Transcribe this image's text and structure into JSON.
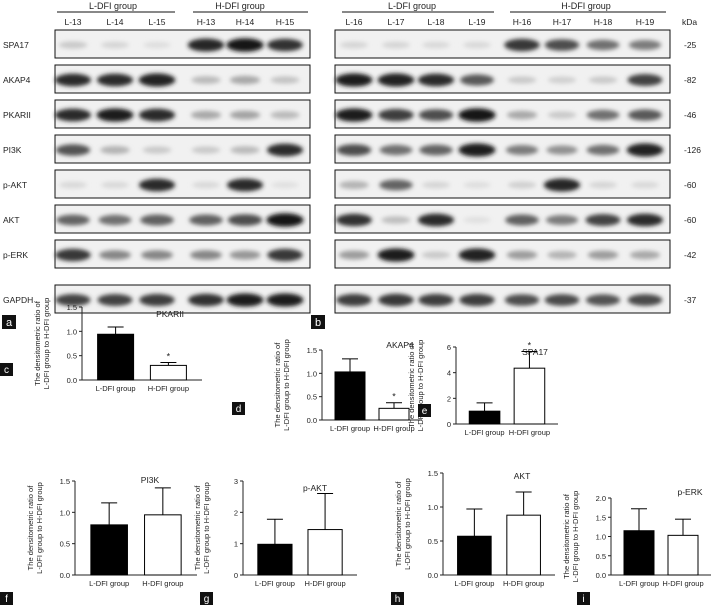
{
  "panel_a": {
    "group_left": "L-DFI group",
    "group_right": "H-DFI group",
    "lanes": [
      "L-13",
      "L-14",
      "L-15",
      "H-13",
      "H-14",
      "H-15"
    ],
    "rows": [
      "SPA17",
      "AKAP4",
      "PKARII",
      "PI3K",
      "p-AKT",
      "AKT",
      "p-ERK",
      "GAPDH"
    ],
    "letter": "a",
    "intensity": [
      [
        0.15,
        0.1,
        0.06,
        0.88,
        0.95,
        0.82
      ],
      [
        0.85,
        0.85,
        0.9,
        0.22,
        0.3,
        0.18
      ],
      [
        0.85,
        0.92,
        0.85,
        0.3,
        0.32,
        0.22
      ],
      [
        0.68,
        0.25,
        0.15,
        0.15,
        0.22,
        0.85
      ],
      [
        0.08,
        0.08,
        0.85,
        0.08,
        0.85,
        0.05
      ],
      [
        0.6,
        0.55,
        0.62,
        0.62,
        0.7,
        0.95
      ],
      [
        0.8,
        0.45,
        0.45,
        0.45,
        0.38,
        0.8
      ],
      [
        0.75,
        0.75,
        0.78,
        0.82,
        0.92,
        0.92
      ]
    ]
  },
  "panel_b": {
    "group_left": "L-DFI group",
    "group_right": "H-DFI group",
    "kda_label": "kDa",
    "lanes": [
      "L-16",
      "L-17",
      "L-18",
      "L-19",
      "H-16",
      "H-17",
      "H-18",
      "H-19"
    ],
    "markers": [
      "-25",
      "-82",
      "-46",
      "-126",
      "-60",
      "-60",
      "-42",
      "-37"
    ],
    "letter": "b",
    "intensity": [
      [
        0.1,
        0.1,
        0.08,
        0.08,
        0.8,
        0.7,
        0.55,
        0.5
      ],
      [
        0.92,
        0.9,
        0.85,
        0.65,
        0.15,
        0.12,
        0.15,
        0.75
      ],
      [
        0.92,
        0.78,
        0.7,
        0.95,
        0.3,
        0.15,
        0.55,
        0.65
      ],
      [
        0.7,
        0.55,
        0.6,
        0.92,
        0.5,
        0.4,
        0.55,
        0.9
      ],
      [
        0.25,
        0.6,
        0.1,
        0.06,
        0.12,
        0.88,
        0.1,
        0.08
      ],
      [
        0.82,
        0.2,
        0.85,
        0.05,
        0.62,
        0.5,
        0.75,
        0.85
      ],
      [
        0.35,
        0.92,
        0.15,
        0.9,
        0.35,
        0.25,
        0.35,
        0.3
      ],
      [
        0.78,
        0.8,
        0.78,
        0.78,
        0.7,
        0.72,
        0.68,
        0.72
      ]
    ]
  },
  "chart_data": [
    {
      "id": "c",
      "type": "bar",
      "title": "PKARII",
      "letter": "c",
      "categories": [
        "L-DFI group",
        "H-DFI group"
      ],
      "values": [
        0.94,
        0.3
      ],
      "errors": [
        0.15,
        0.06
      ],
      "ylim": [
        0,
        1.5
      ],
      "yticks": [
        "0.0",
        "0.5",
        "1.0",
        "1.5"
      ],
      "ylabel": [
        "The densitometric ratio of",
        "L-DFI group to H-DFI group"
      ],
      "significance": "*",
      "fills": [
        "#000000",
        "#ffffff"
      ]
    },
    {
      "id": "d",
      "type": "bar",
      "title": "AKAP4",
      "letter": "d",
      "categories": [
        "L-DFI group",
        "H-DFI group"
      ],
      "values": [
        1.03,
        0.25
      ],
      "errors": [
        0.28,
        0.12
      ],
      "ylim": [
        0,
        1.5
      ],
      "yticks": [
        "0.0",
        "0.5",
        "1.0",
        "1.5"
      ],
      "ylabel": [
        "The densitometric ratio of",
        "L-DFI group to H-DFI group"
      ],
      "significance": "*",
      "fills": [
        "#000000",
        "#ffffff"
      ]
    },
    {
      "id": "e",
      "type": "bar",
      "title": "SPA17",
      "letter": "e",
      "categories": [
        "L-DFI group",
        "H-DFI group"
      ],
      "values": [
        1.0,
        4.35
      ],
      "errors": [
        0.65,
        1.3
      ],
      "ylim": [
        0,
        6
      ],
      "yticks": [
        "0",
        "2",
        "4",
        "6"
      ],
      "ylabel": [
        "The densitometric ratio of",
        "L-DFI group to H-DFI group"
      ],
      "significance": "*",
      "fills": [
        "#000000",
        "#ffffff"
      ]
    },
    {
      "id": "f",
      "type": "bar",
      "title": "PI3K",
      "letter": "f",
      "categories": [
        "L-DFI group",
        "H-DFI group"
      ],
      "values": [
        0.8,
        0.96
      ],
      "errors": [
        0.35,
        0.43
      ],
      "ylim": [
        0,
        1.5
      ],
      "yticks": [
        "0.0",
        "0.5",
        "1.0",
        "1.5"
      ],
      "ylabel": [
        "The densitometric ratio of",
        "L-DFI group to H-DFI group"
      ],
      "significance": "",
      "fills": [
        "#000000",
        "#ffffff"
      ]
    },
    {
      "id": "g",
      "type": "bar",
      "title": "p-AKT",
      "letter": "g",
      "categories": [
        "L-DFI group",
        "H-DFI group"
      ],
      "values": [
        0.98,
        1.45
      ],
      "errors": [
        0.8,
        1.15
      ],
      "ylim": [
        0,
        3
      ],
      "yticks": [
        "0",
        "1",
        "2",
        "3"
      ],
      "ylabel": [
        "The densitometric ratio of",
        "L-DFI group to H-DFI group"
      ],
      "significance": "",
      "fills": [
        "#000000",
        "#ffffff"
      ]
    },
    {
      "id": "h",
      "type": "bar",
      "title": "AKT",
      "letter": "h",
      "categories": [
        "L-DFI group",
        "H-DFI group"
      ],
      "values": [
        0.57,
        0.88
      ],
      "errors": [
        0.4,
        0.34
      ],
      "ylim": [
        0,
        1.5
      ],
      "yticks": [
        "0.0",
        "0.5",
        "1.0",
        "1.5"
      ],
      "ylabel": [
        "The densitometric ratio of",
        "L-DFI group to H-DFI group"
      ],
      "significance": "",
      "fills": [
        "#000000",
        "#ffffff"
      ]
    },
    {
      "id": "i",
      "type": "bar",
      "title": "p-ERK",
      "letter": "i",
      "categories": [
        "L-DFI group",
        "H-DFI group"
      ],
      "values": [
        1.15,
        1.03
      ],
      "errors": [
        0.57,
        0.42
      ],
      "ylim": [
        0,
        2.0
      ],
      "yticks": [
        "0.0",
        "0.5",
        "1.0",
        "1.5",
        "2.0"
      ],
      "ylabel": [
        "The densitometric ratio of",
        "L-DFI group to H-DFI group"
      ],
      "significance": "",
      "fills": [
        "#000000",
        "#ffffff"
      ]
    }
  ]
}
